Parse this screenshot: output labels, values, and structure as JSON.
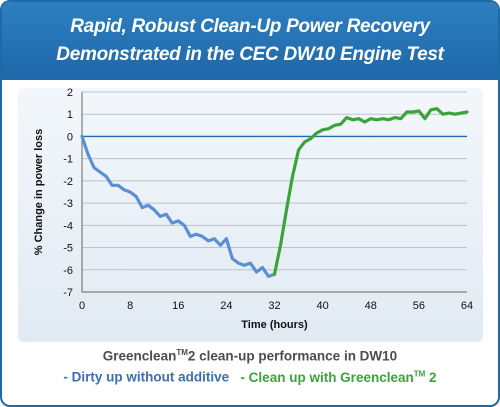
{
  "header": {
    "title_line1": "Rapid, Robust Clean-Up Power Recovery",
    "title_line2": "Demonstrated in the CEC DW10 Engine Test"
  },
  "caption": {
    "line1_prefix": "Greenclean",
    "line1_sup": "TM",
    "line1_suffix": "2 clean-up performance in DW10",
    "legend_dirty": "- Dirty up without additive",
    "legend_clean_prefix": "- Clean up with Greenclean",
    "legend_clean_sup": "TM",
    "legend_clean_suffix": " 2"
  },
  "colors": {
    "header_blue": "#1f67a8",
    "dirty_series": "#5b8fd4",
    "clean_series": "#3aa43a",
    "zero_line": "#1f67a8"
  },
  "chart_data": {
    "type": "line",
    "xlabel": "Time (hours)",
    "ylabel": "% Change in power loss",
    "xlim": [
      0,
      64
    ],
    "ylim": [
      -7,
      2
    ],
    "xticks": [
      0,
      8,
      16,
      24,
      32,
      40,
      48,
      56,
      64
    ],
    "yticks": [
      2,
      1,
      0,
      -1,
      -2,
      -3,
      -4,
      -5,
      -6,
      -7
    ],
    "grid": "horizontal",
    "series": [
      {
        "name": "Dirty up without additive",
        "color": "#5b8fd4",
        "points": [
          [
            0,
            0
          ],
          [
            1,
            -0.8
          ],
          [
            2,
            -1.4
          ],
          [
            3,
            -1.6
          ],
          [
            4,
            -1.8
          ],
          [
            5,
            -2.2
          ],
          [
            6,
            -2.2
          ],
          [
            7,
            -2.4
          ],
          [
            8,
            -2.5
          ],
          [
            9,
            -2.7
          ],
          [
            10,
            -3.2
          ],
          [
            11,
            -3.1
          ],
          [
            12,
            -3.3
          ],
          [
            13,
            -3.6
          ],
          [
            14,
            -3.5
          ],
          [
            15,
            -3.9
          ],
          [
            16,
            -3.8
          ],
          [
            17,
            -4.0
          ],
          [
            18,
            -4.5
          ],
          [
            19,
            -4.4
          ],
          [
            20,
            -4.5
          ],
          [
            21,
            -4.7
          ],
          [
            22,
            -4.6
          ],
          [
            23,
            -4.9
          ],
          [
            24,
            -4.6
          ],
          [
            25,
            -5.5
          ],
          [
            26,
            -5.7
          ],
          [
            27,
            -5.8
          ],
          [
            28,
            -5.7
          ],
          [
            29,
            -6.1
          ],
          [
            30,
            -5.9
          ],
          [
            31,
            -6.3
          ],
          [
            32,
            -6.2
          ]
        ]
      },
      {
        "name": "Clean up with Greenclean 2",
        "color": "#3aa43a",
        "points": [
          [
            32,
            -6.2
          ],
          [
            33,
            -4.9
          ],
          [
            34,
            -3.3
          ],
          [
            35,
            -1.8
          ],
          [
            36,
            -0.6
          ],
          [
            37,
            -0.25
          ],
          [
            38,
            -0.1
          ],
          [
            39,
            0.15
          ],
          [
            40,
            0.3
          ],
          [
            41,
            0.35
          ],
          [
            42,
            0.5
          ],
          [
            43,
            0.55
          ],
          [
            44,
            0.85
          ],
          [
            45,
            0.75
          ],
          [
            46,
            0.8
          ],
          [
            47,
            0.65
          ],
          [
            48,
            0.8
          ],
          [
            49,
            0.75
          ],
          [
            50,
            0.8
          ],
          [
            51,
            0.75
          ],
          [
            52,
            0.85
          ],
          [
            53,
            0.8
          ],
          [
            54,
            1.1
          ],
          [
            55,
            1.1
          ],
          [
            56,
            1.15
          ],
          [
            57,
            0.8
          ],
          [
            58,
            1.2
          ],
          [
            59,
            1.25
          ],
          [
            60,
            1.0
          ],
          [
            61,
            1.05
          ],
          [
            62,
            1.0
          ],
          [
            63,
            1.05
          ],
          [
            64,
            1.1
          ]
        ]
      }
    ]
  }
}
